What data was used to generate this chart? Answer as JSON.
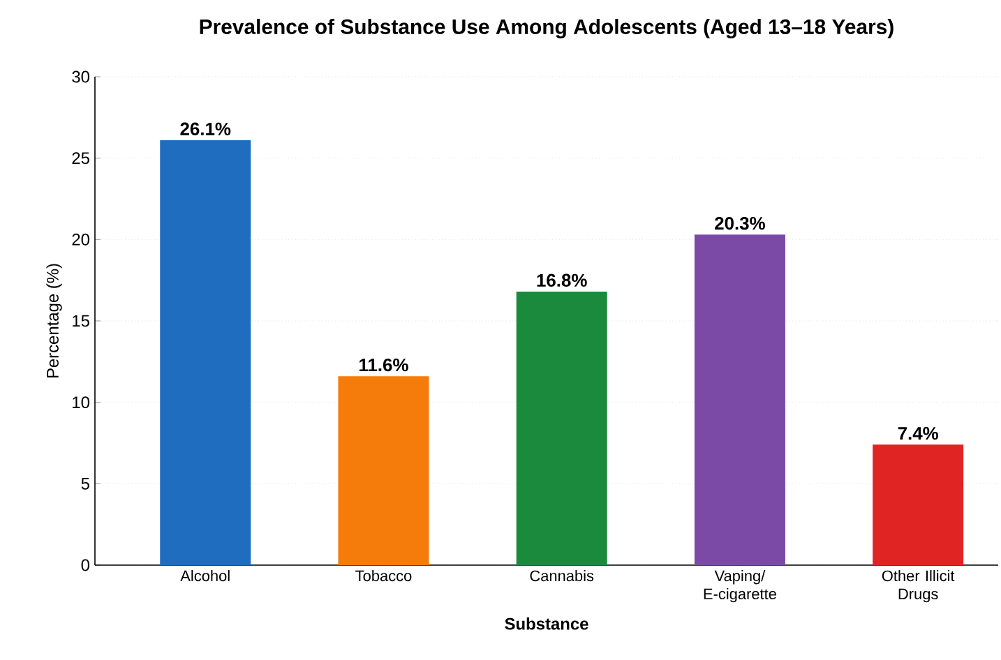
{
  "chart_data": {
    "type": "bar",
    "title": "Prevalence of Substance Use Among Adolescents (Aged 13–18 Years)",
    "xlabel": "Substance",
    "ylabel": "Percentage (%)",
    "categories": [
      "Alcohol",
      "Tobacco",
      "Cannabis",
      "Vaping/ E-cigarette",
      "Other Illicit Drugs"
    ],
    "values": [
      26.1,
      11.6,
      16.8,
      20.3,
      7.4
    ],
    "value_labels": [
      "26.1%",
      "11.6%",
      "16.8%",
      "20.3%",
      "7.4%"
    ],
    "colors": [
      "#1f6dbf",
      "#f57c0a",
      "#1b8a3c",
      "#7a4aa6",
      "#e02424"
    ],
    "ylim": [
      0,
      30
    ],
    "yticks": [
      0,
      5,
      10,
      15,
      20,
      25,
      30
    ],
    "grid": "y"
  }
}
